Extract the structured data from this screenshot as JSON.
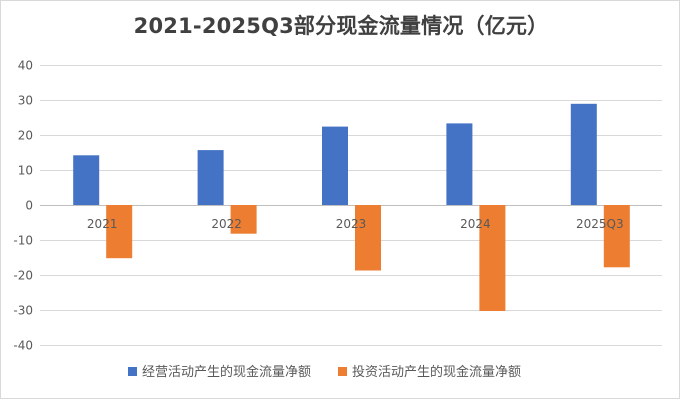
{
  "chart_data": {
    "type": "bar",
    "title": "2021-2025Q3部分现金流量情况（亿元）",
    "categories": [
      "2021",
      "2022",
      "2023",
      "2024",
      "2025Q3"
    ],
    "series": [
      {
        "name": "经营活动产生的现金流量净额",
        "color": "#4472c4",
        "values": [
          14.2,
          15.7,
          22.4,
          23.3,
          28.9
        ]
      },
      {
        "name": "投资活动产生的现金流量净额",
        "color": "#ed7d31",
        "values": [
          -15.2,
          -8.2,
          -18.7,
          -30.3,
          -17.8
        ]
      }
    ],
    "ylim": [
      -40,
      40
    ],
    "yticks": [
      "40",
      "30",
      "20",
      "10",
      "0",
      "-10",
      "-20",
      "-30",
      "-40"
    ],
    "grid": true,
    "legend": "bottom"
  }
}
